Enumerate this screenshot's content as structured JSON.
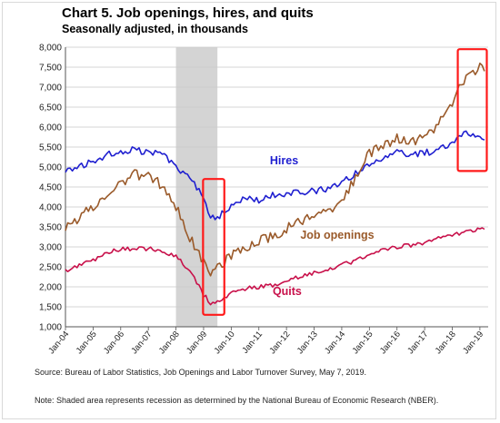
{
  "chart_data": {
    "type": "line",
    "title": "Chart 5. Job openings, hires, and quits",
    "subtitle": "Seasonally adjusted, in thousands",
    "ylim": [
      1000,
      8000
    ],
    "yticks": [
      1000,
      1500,
      2000,
      2500,
      3000,
      3500,
      4000,
      4500,
      5000,
      5500,
      6000,
      6500,
      7000,
      7500,
      8000
    ],
    "ytick_labels": [
      "1,000",
      "1,500",
      "2,000",
      "2,500",
      "3,000",
      "3,500",
      "4,000",
      "4,500",
      "5,000",
      "5,500",
      "6,000",
      "6,500",
      "7,000",
      "7,500",
      "8,000"
    ],
    "xticks": [
      "Jan-04",
      "Jan-05",
      "Jan-06",
      "Jan-07",
      "Jan-08",
      "Jan-09",
      "Jan-10",
      "Jan-11",
      "Jan-12",
      "Jan-13",
      "Jan-14",
      "Jan-15",
      "Jan-16",
      "Jan-17",
      "Jan-18",
      "Jan-19"
    ],
    "x_range": [
      2004.0,
      2019.3
    ],
    "grid": true,
    "recession": [
      2008.0,
      2009.5
    ],
    "highlight_boxes": [
      [
        2008.98,
        2009.75,
        1300,
        4700
      ],
      [
        2018.2,
        2019.25,
        4900,
        7950
      ]
    ],
    "series": [
      {
        "name": "Hires",
        "color": "#1f1fd0",
        "label_at": [
          2011.4,
          5070
        ],
        "x": [
          2004.0,
          2004.5,
          2005.0,
          2005.5,
          2006.0,
          2006.5,
          2007.0,
          2007.5,
          2008.0,
          2008.5,
          2009.0,
          2009.25,
          2009.5,
          2010.0,
          2010.5,
          2011.0,
          2011.5,
          2012.0,
          2012.5,
          2013.0,
          2013.5,
          2014.0,
          2014.5,
          2015.0,
          2015.5,
          2016.0,
          2016.5,
          2017.0,
          2017.5,
          2018.0,
          2018.5,
          2019.0,
          2019.2
        ],
        "values": [
          4950,
          5000,
          5150,
          5300,
          5400,
          5450,
          5350,
          5350,
          5000,
          4750,
          4250,
          3750,
          3750,
          4000,
          4200,
          4150,
          4300,
          4350,
          4350,
          4400,
          4450,
          4600,
          4850,
          5050,
          5250,
          5350,
          5300,
          5350,
          5450,
          5600,
          5850,
          5750,
          5700
        ]
      },
      {
        "name": "Job openings",
        "color": "#9a5a2a",
        "label_at": [
          2012.5,
          3200
        ],
        "x": [
          2004.0,
          2004.5,
          2005.0,
          2005.5,
          2006.0,
          2006.5,
          2007.0,
          2007.5,
          2008.0,
          2008.5,
          2009.0,
          2009.25,
          2009.5,
          2010.0,
          2010.5,
          2011.0,
          2011.5,
          2012.0,
          2012.5,
          2013.0,
          2013.5,
          2014.0,
          2014.5,
          2015.0,
          2015.5,
          2016.0,
          2016.5,
          2017.0,
          2017.5,
          2018.0,
          2018.5,
          2019.0,
          2019.2
        ],
        "values": [
          3450,
          3750,
          4000,
          4300,
          4600,
          4800,
          4750,
          4550,
          4000,
          3250,
          2600,
          2350,
          2450,
          2800,
          3000,
          3150,
          3250,
          3450,
          3650,
          3800,
          3900,
          4150,
          4750,
          5350,
          5550,
          5700,
          5650,
          5750,
          6100,
          6600,
          7300,
          7500,
          7450
        ]
      },
      {
        "name": "Quits",
        "color": "#c8104a",
        "label_at": [
          2011.5,
          1800
        ],
        "x": [
          2004.0,
          2004.5,
          2005.0,
          2005.5,
          2006.0,
          2006.5,
          2007.0,
          2007.5,
          2008.0,
          2008.5,
          2009.0,
          2009.25,
          2009.5,
          2010.0,
          2010.5,
          2011.0,
          2011.5,
          2012.0,
          2012.5,
          2013.0,
          2013.5,
          2014.0,
          2014.5,
          2015.0,
          2015.5,
          2016.0,
          2016.5,
          2017.0,
          2017.5,
          2018.0,
          2018.5,
          2019.0,
          2019.2
        ],
        "values": [
          2400,
          2550,
          2650,
          2850,
          2950,
          2950,
          2950,
          2900,
          2750,
          2400,
          1800,
          1600,
          1650,
          1850,
          1950,
          2000,
          2050,
          2150,
          2250,
          2350,
          2400,
          2550,
          2650,
          2800,
          2950,
          3000,
          3050,
          3100,
          3200,
          3300,
          3400,
          3450,
          3450
        ]
      }
    ]
  },
  "footnotes": {
    "source": "Source: Bureau of Labor Statistics, Job Openings and Labor Turnover Survey, May 7, 2019.",
    "shading": "Note: Shaded area represents recession as determined by the National Bureau of Economic Research (NBER)."
  }
}
